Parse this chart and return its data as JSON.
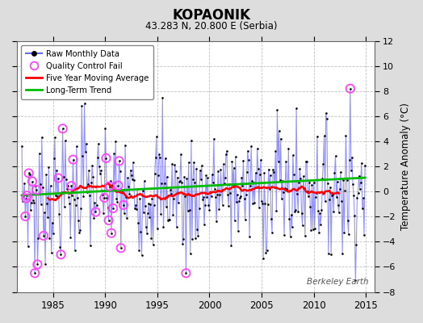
{
  "title": "KOPAONIK",
  "subtitle": "43.283 N, 20.800 E (Serbia)",
  "ylabel": "Temperature Anomaly (°C)",
  "watermark": "Berkeley Earth",
  "xlim": [
    1981.5,
    2015.8
  ],
  "ylim": [
    -8,
    12
  ],
  "yticks": [
    -8,
    -6,
    -4,
    -2,
    0,
    2,
    4,
    6,
    8,
    10,
    12
  ],
  "xticks": [
    1985,
    1990,
    1995,
    2000,
    2005,
    2010,
    2015
  ],
  "raw_color": "#6666FF",
  "raw_alpha": 0.7,
  "dot_color": "#000000",
  "qc_color": "#FF44FF",
  "ma_color": "#FF0000",
  "trend_color": "#00BB00",
  "bg_color": "#DDDDDD",
  "plot_bg": "#FFFFFF",
  "grid_color": "#BBBBBB",
  "grid_style": "--"
}
